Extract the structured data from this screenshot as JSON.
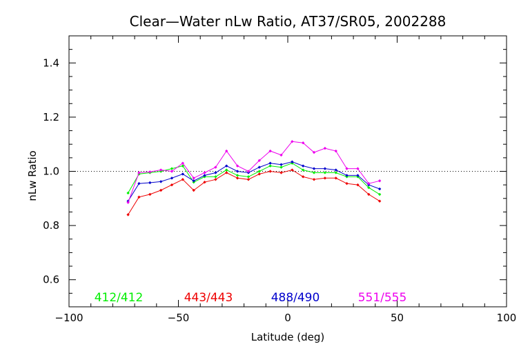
{
  "chart_data": {
    "type": "line",
    "title": "Clear—Water nLw Ratio, AT37/SR05, 2002288",
    "xlabel": "Latitude (deg)",
    "ylabel": "nLw Ratio",
    "xlim": [
      -100,
      100
    ],
    "ylim": [
      0.5,
      1.5
    ],
    "xticks": [
      -100,
      -50,
      0,
      50,
      100
    ],
    "xtick_labels": [
      "−100",
      "−50",
      "0",
      "50",
      "100"
    ],
    "yticks": [
      0.6,
      0.8,
      1.0,
      1.2,
      1.4
    ],
    "ytick_labels": [
      "0.6",
      "0.8",
      "1.0",
      "1.2",
      "1.4"
    ],
    "reference_line": 1.0,
    "grid": false,
    "legend_placement": "bottom",
    "x": [
      -73,
      -68,
      -63,
      -58,
      -53,
      -48,
      -43,
      -38,
      -33,
      -28,
      -23,
      -18,
      -13,
      -8,
      -3,
      2,
      7,
      12,
      17,
      22,
      27,
      32,
      37,
      42
    ],
    "series": [
      {
        "name": "412/412",
        "color": "#00ee00",
        "values": [
          0.92,
          0.99,
          0.995,
          1.0,
          1.01,
          1.02,
          0.96,
          0.98,
          0.98,
          1.005,
          0.985,
          0.98,
          1.0,
          1.02,
          1.015,
          1.03,
          1.005,
          0.995,
          0.995,
          0.995,
          0.98,
          0.98,
          0.94,
          0.915
        ]
      },
      {
        "name": "443/443",
        "color": "#ee0000",
        "values": [
          0.84,
          0.905,
          0.915,
          0.93,
          0.95,
          0.97,
          0.93,
          0.96,
          0.97,
          0.995,
          0.975,
          0.97,
          0.99,
          1.0,
          0.995,
          1.005,
          0.98,
          0.97,
          0.975,
          0.975,
          0.955,
          0.95,
          0.915,
          0.89
        ]
      },
      {
        "name": "488/490",
        "color": "#0000cc",
        "values": [
          0.89,
          0.955,
          0.958,
          0.962,
          0.975,
          0.99,
          0.965,
          0.985,
          0.995,
          1.02,
          1.0,
          0.995,
          1.015,
          1.03,
          1.025,
          1.035,
          1.02,
          1.01,
          1.01,
          1.005,
          0.985,
          0.985,
          0.95,
          0.935
        ]
      },
      {
        "name": "551/555",
        "color": "#ee00ee",
        "values": [
          0.885,
          0.995,
          0.998,
          1.005,
          1.0,
          1.03,
          0.975,
          0.995,
          1.015,
          1.075,
          1.02,
          1.0,
          1.04,
          1.075,
          1.06,
          1.11,
          1.105,
          1.07,
          1.085,
          1.075,
          1.01,
          1.01,
          0.955,
          0.965
        ]
      }
    ]
  }
}
